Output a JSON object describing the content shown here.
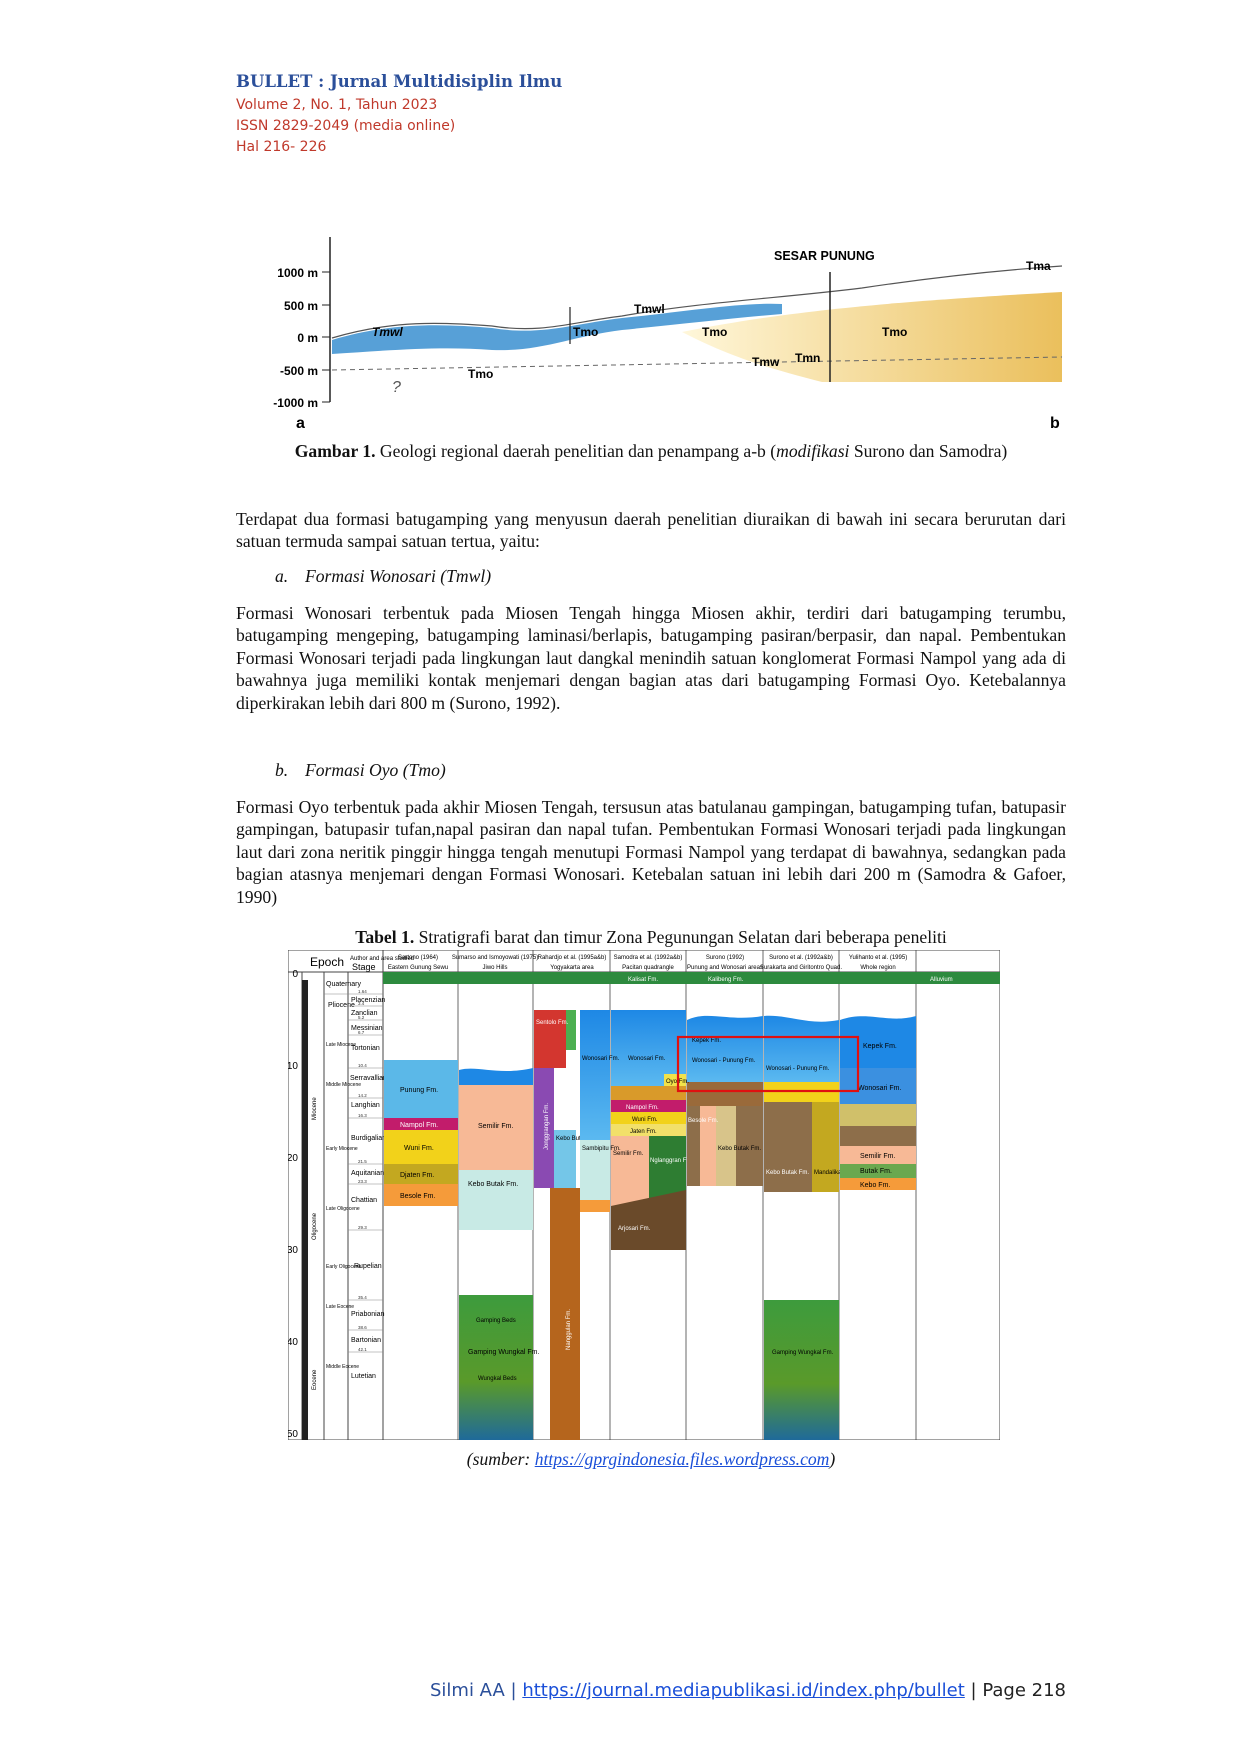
{
  "header": {
    "journal": "BULLET : Jurnal Multidisiplin Ilmu",
    "volume": "Volume 2, No. 1, Tahun 2023",
    "issn": "ISSN 2829-2049 (media online)",
    "pages": "Hal 216- 226"
  },
  "figure1": {
    "y_labels": [
      "1000 m",
      "500 m",
      "0 m",
      "-500 m",
      "-1000 m"
    ],
    "fault_label": "SESAR PUNUNG",
    "units": [
      "Tmwl",
      "Tmo",
      "Tmwl",
      "Tmo",
      "Tmo",
      "Tmo",
      "Tmw",
      "Tmn",
      "Tma",
      "?"
    ],
    "end_a": "a",
    "end_b": "b",
    "caption_bold": "Gambar 1.",
    "caption_text": " Geologi regional daerah penelitian dan penampang a-b (",
    "caption_italic": "modifikasi",
    "caption_end": " Surono dan Samodra)"
  },
  "intro": "Terdapat dua formasi batugamping yang menyusun daerah penelitian diuraikan di bawah ini secara berurutan dari satuan termuda sampai satuan tertua, yaitu:",
  "section_a": {
    "num": "a.",
    "title": "Formasi Wonosari (Tmwl)"
  },
  "para_a": "Formasi Wonosari terbentuk pada Miosen Tengah hingga Miosen akhir, terdiri dari batugamping terumbu, batugamping mengeping, batugamping laminasi/berlapis, batugamping pasiran/berpasir, dan napal. Pembentukan Formasi Wonosari terjadi pada lingkungan laut dangkal menindih satuan konglomerat Formasi Nampol yang ada di bawahnya juga memiliki kontak menjemari dengan bagian atas dari batugamping Formasi Oyo. Ketebalannya diperkirakan lebih dari 800 m (Surono, 1992).",
  "section_b": {
    "num": "b.",
    "title": "Formasi Oyo (Tmo)"
  },
  "para_b": "Formasi Oyo terbentuk pada akhir Miosen Tengah, tersusun atas batulanau gampingan, batugamping tufan, batupasir gampingan, batupasir tufan,napal pasiran dan napal tufan. Pembentukan Formasi Wonosari terjadi pada lingkungan laut dari zona neritik pinggir hingga tengah menutupi Formasi Nampol yang terdapat di bawahnya, sedangkan pada bagian atasnya menjemari dengan Formasi Wonosari. Ketebalan satuan ini lebih dari 200 m (Samodra & Gafoer, 1990)",
  "table1": {
    "caption_bold": "Tabel 1.",
    "caption_text": " Stratigrafi barat dan timur Zona Pegunungan Selatan dari beberapa peneliti",
    "head_epoch": "Epoch",
    "head_stage": "Stage",
    "head_author": "Author and area studied",
    "columns": [
      {
        "author": "Sartono (1964)",
        "area": "Eastern Gunung Sewu"
      },
      {
        "author": "Sumarso and Ismoyowati (1975)",
        "area": "Jiwo Hills"
      },
      {
        "author": "Rahardjo et al. (1995a&b)",
        "area": "Yogyakarta area"
      },
      {
        "author": "Samodra et al. (1992a&b)",
        "area": "Pacitan quadrangle"
      },
      {
        "author": "Surono (1992)",
        "area": "Punung and Wonosari areas"
      },
      {
        "author": "Surono et al. (1992a&b)",
        "area": "Surakarta and Giritontro Quad."
      },
      {
        "author": "Yulihanto et al. (1995)",
        "area": "Whole region"
      }
    ],
    "age_ticks": [
      "0",
      "10",
      "20",
      "30",
      "40",
      "50"
    ],
    "stages": [
      "Quaternary",
      "Pliocene",
      "Placenzian",
      "Zanclian",
      "Messinian",
      "Tortonian",
      "Serravallian",
      "Langhian",
      "Burdigalian",
      "Aquitanian",
      "Chattian",
      "Rupelian",
      "Priabonian",
      "Bartonian",
      "Lutetian"
    ],
    "epochs": [
      "Late Miocene",
      "Middle Miocene",
      "Early Miocene",
      "Late Oligocene",
      "Early Oligocene",
      "Late Eocene",
      "Middle Eocene"
    ],
    "boundaries": [
      "1.64",
      "3.4",
      "5.2",
      "6.7",
      "10.4",
      "14.2",
      "16.3",
      "21.5",
      "23.3",
      "29.3",
      "35.4",
      "38.6",
      "42.1"
    ],
    "era_labels": [
      "Miocene",
      "Oligocene",
      "Eocene"
    ],
    "formations": {
      "punung": "Punung Fm.",
      "nampol": "Nampol Fm.",
      "wuni": "Wuni Fm.",
      "djaten": "Djaten Fm.",
      "besole": "Besole Fm.",
      "semilir": "Semilir Fm.",
      "kebo_butak": "Kebo Butak Fm.",
      "gamping_beds": "Gamping Beds",
      "gamping_wungkal": "Gamping Wungkal Fm.",
      "wungkal_beds": "Wungkal Beds",
      "sentolo": "Sentolo Fm.",
      "kepek": "Kepek Fm.",
      "wonosari": "Wonosari Fm.",
      "oyo": "Oyo Fm.",
      "jaten": "Jaten Fm.",
      "sambipitu": "Sambipitu Fm.",
      "nglanggran": "Nglanggran Fm.",
      "mandalika": "Mandalika Fm.",
      "arjosari": "Arjosari Fm.",
      "wonosari_punung": "Wonosari - Punung Fm.",
      "nampol_short": "Nampol Fm.",
      "butak": "Butak Fm.",
      "kebo": "Kebo Fm.",
      "alluvium": "Alluvium",
      "kalisat": "Kalisat Fm.",
      "kaliduren": "Kalibeng Fm.",
      "nanggulan": "Nanggulan Fm.",
      "jonggrangan": "Jonggrangan Fm.",
      "kebo_butak_short": "Kebo Butak Fm."
    }
  },
  "source": {
    "prefix": "(",
    "label": "sumber:",
    "url": "https://gprgindonesia.files.wordpress.com",
    "suffix": ")"
  },
  "footer": {
    "author": "Silmi AA | ",
    "url": "https://journal.mediapublikasi.id/index.php/bullet",
    "page": " | Page 218"
  }
}
